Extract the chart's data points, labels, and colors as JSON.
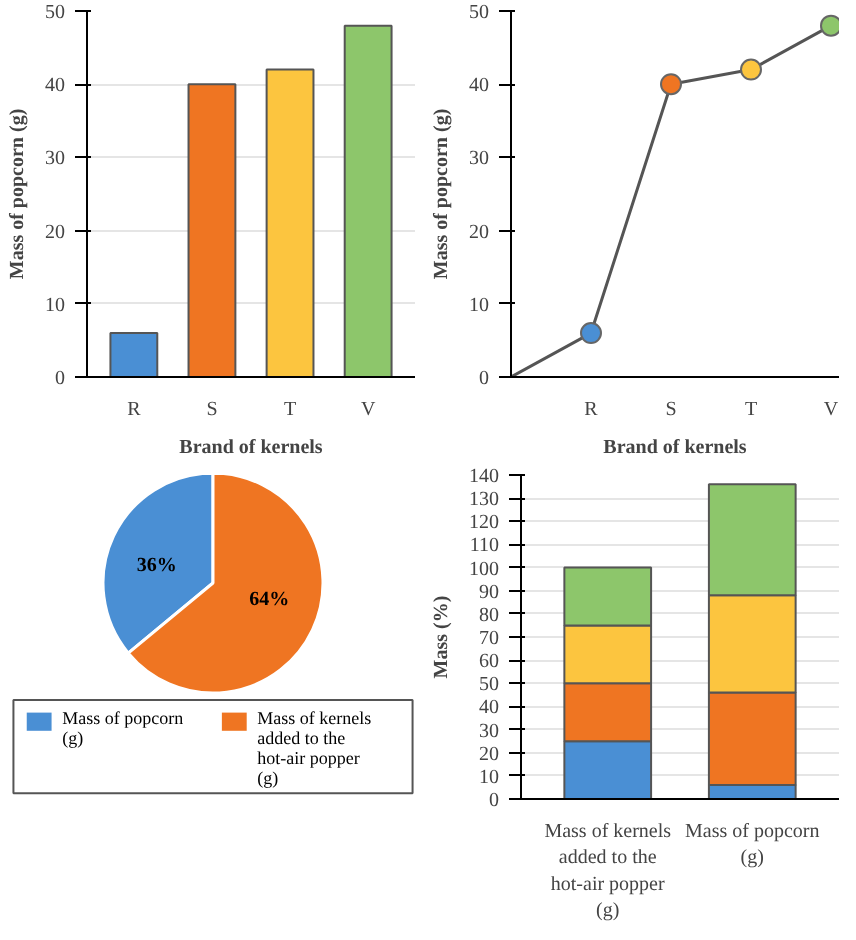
{
  "chart_data": [
    {
      "type": "bar",
      "xlabel": "Brand of kernels",
      "ylabel": "Mass of popcorn (g)",
      "categories": [
        "R",
        "S",
        "T",
        "V"
      ],
      "values": [
        6,
        40,
        42,
        48
      ],
      "colors": [
        "#4a8fd4",
        "#ef7522",
        "#fcc53f",
        "#8dc66b"
      ],
      "ylim": [
        0,
        50
      ],
      "yticks": [
        0,
        10,
        20,
        30,
        40,
        50
      ],
      "grid": "y"
    },
    {
      "type": "line",
      "xlabel": "Brand of kernels",
      "ylabel": "Mass of popcorn (g)",
      "categories": [
        null,
        "R",
        "S",
        "T",
        "V"
      ],
      "values": [
        0,
        6,
        40,
        42,
        48
      ],
      "color": "#555555",
      "colors": [
        null,
        "#4a8fd4",
        "#ef7522",
        "#fcc53f",
        "#8dc66b"
      ],
      "marker": "circle",
      "ylim": [
        0,
        50
      ],
      "yticks": [
        0,
        10,
        20,
        30,
        40,
        50
      ]
    },
    {
      "type": "pie",
      "categories": [
        "Mass of popcorn (g)",
        "Mass of kernels added to the hot-air popper (g)"
      ],
      "values": [
        36,
        64
      ],
      "colors": [
        "#4a8fd4",
        "#ef7522"
      ],
      "value_labels": [
        "36%",
        "64%"
      ],
      "legend": "bottom"
    },
    {
      "type": "bar",
      "stacked": true,
      "ylabel": "Mass (%)",
      "categories": [
        "Mass of kernels added to the hot-air popper (g)",
        "Mass of popcorn (g)"
      ],
      "series": [
        {
          "color": "#4a8fd4",
          "values": [
            25,
            6
          ]
        },
        {
          "color": "#ef7522",
          "values": [
            25,
            40
          ]
        },
        {
          "color": "#fcc53f",
          "values": [
            25,
            42
          ]
        },
        {
          "color": "#8dc66b",
          "values": [
            25,
            48
          ]
        }
      ],
      "ylim": [
        0,
        140
      ],
      "yticks": [
        0,
        10,
        20,
        30,
        40,
        50,
        60,
        70,
        80,
        90,
        100,
        110,
        120,
        130,
        140
      ],
      "grid": "y"
    }
  ]
}
